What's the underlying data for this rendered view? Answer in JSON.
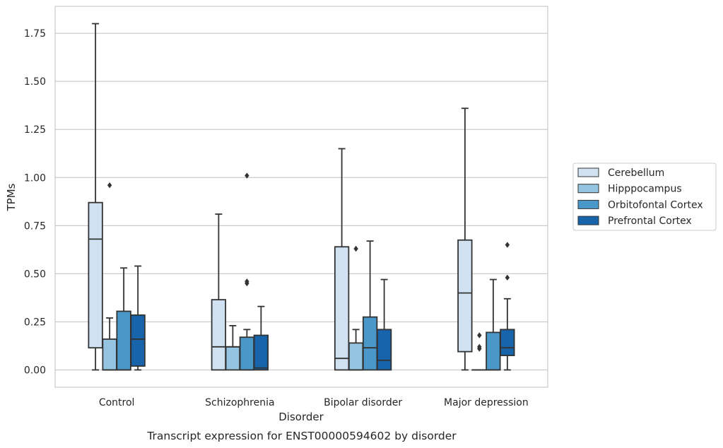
{
  "chart_data": {
    "type": "boxplot",
    "caption": "Transcript expression for ENST00000594602 by disorder",
    "xlabel": "Disorder",
    "ylabel": "TPMs",
    "ylim": [
      -0.09,
      1.89
    ],
    "yticks": [
      0.0,
      0.25,
      0.5,
      0.75,
      1.0,
      1.25,
      1.5,
      1.75
    ],
    "ytick_labels": [
      "0.00",
      "0.25",
      "0.50",
      "0.75",
      "1.00",
      "1.25",
      "1.50",
      "1.75"
    ],
    "grid": "horizontal",
    "legend_position": "right",
    "categories": [
      "Control",
      "Schizophrenia",
      "Bipolar disorder",
      "Major depression"
    ],
    "series": [
      {
        "name": "Cerebellum",
        "color": "#d0e1f2",
        "boxes": [
          {
            "whisker_low": 0.0,
            "q1": 0.115,
            "median": 0.68,
            "q3": 0.87,
            "whisker_high": 1.8,
            "outliers": []
          },
          {
            "whisker_low": 0.0,
            "q1": 0.0,
            "median": 0.12,
            "q3": 0.365,
            "whisker_high": 0.81,
            "outliers": []
          },
          {
            "whisker_low": 0.0,
            "q1": 0.0,
            "median": 0.06,
            "q3": 0.64,
            "whisker_high": 1.15,
            "outliers": []
          },
          {
            "whisker_low": 0.0,
            "q1": 0.095,
            "median": 0.4,
            "q3": 0.675,
            "whisker_high": 1.36,
            "outliers": []
          }
        ]
      },
      {
        "name": "Hipppocampus",
        "color": "#94c4df",
        "boxes": [
          {
            "whisker_low": 0.0,
            "q1": 0.0,
            "median": 0.0,
            "q3": 0.16,
            "whisker_high": 0.27,
            "outliers": [
              0.96
            ]
          },
          {
            "whisker_low": 0.0,
            "q1": 0.0,
            "median": 0.12,
            "q3": 0.12,
            "whisker_high": 0.23,
            "outliers": []
          },
          {
            "whisker_low": 0.0,
            "q1": 0.0,
            "median": 0.0,
            "q3": 0.14,
            "whisker_high": 0.21,
            "outliers": [
              0.63
            ]
          },
          {
            "whisker_low": 0.0,
            "q1": 0.0,
            "median": 0.0,
            "q3": 0.0,
            "whisker_high": 0.0,
            "outliers": []
          }
        ]
      },
      {
        "name": "Orbitofontal Cortex",
        "color": "#4a98c9",
        "boxes": [
          {
            "whisker_low": 0.0,
            "q1": 0.0,
            "median": 0.0,
            "q3": 0.305,
            "whisker_high": 0.53,
            "outliers": []
          },
          {
            "whisker_low": 0.0,
            "q1": 0.0,
            "median": 0.0,
            "q3": 0.17,
            "whisker_high": 0.21,
            "outliers": [
              0.45,
              0.46,
              1.01
            ]
          },
          {
            "whisker_low": 0.0,
            "q1": 0.0,
            "median": 0.115,
            "q3": 0.275,
            "whisker_high": 0.67,
            "outliers": []
          },
          {
            "whisker_low": 0.0,
            "q1": 0.0,
            "median": 0.0,
            "q3": 0.195,
            "whisker_high": 0.47,
            "outliers": []
          }
        ]
      },
      {
        "name": "Prefrontal Cortex",
        "color": "#1764ab",
        "boxes": [
          {
            "whisker_low": 0.0,
            "q1": 0.02,
            "median": 0.16,
            "q3": 0.285,
            "whisker_high": 0.54,
            "outliers": []
          },
          {
            "whisker_low": 0.0,
            "q1": 0.0,
            "median": 0.01,
            "q3": 0.18,
            "whisker_high": 0.33,
            "outliers": []
          },
          {
            "whisker_low": 0.0,
            "q1": 0.0,
            "median": 0.05,
            "q3": 0.21,
            "whisker_high": 0.47,
            "outliers": []
          },
          {
            "whisker_low": 0.0,
            "q1": 0.075,
            "median": 0.115,
            "q3": 0.21,
            "whisker_high": 0.37,
            "outliers": [
              0.48,
              0.65
            ]
          }
        ]
      }
    ],
    "extra_outliers": [
      {
        "category": 3,
        "x_offset": -0.055,
        "values": [
          0.11,
          0.12,
          0.18
        ]
      }
    ]
  }
}
